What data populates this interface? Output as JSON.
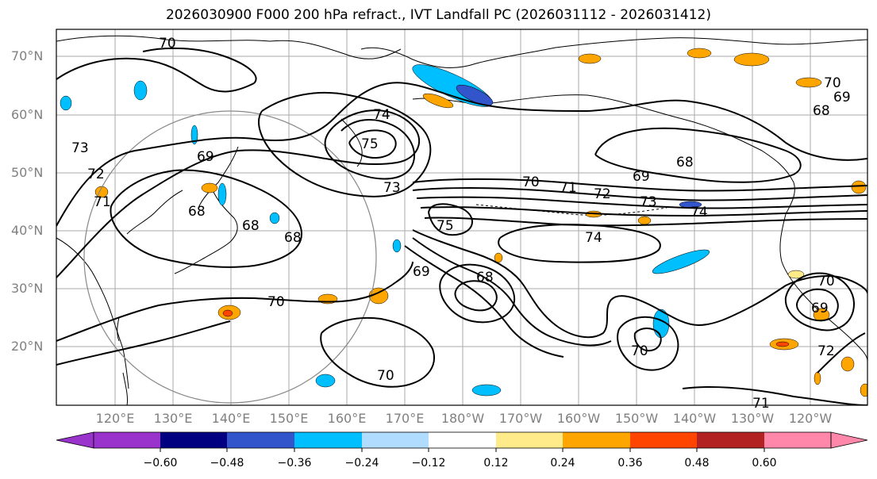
{
  "title": "2026030900 F000 200 hPa refract., IVT Landfall PC (2026031112 - 2026031412)",
  "lat_labels": [
    "70°N",
    "60°N",
    "50°N",
    "40°N",
    "30°N",
    "20°N"
  ],
  "lon_labels": [
    "120°E",
    "130°E",
    "140°E",
    "150°E",
    "160°E",
    "170°E",
    "180°W",
    "170°W",
    "160°W",
    "150°W",
    "140°W",
    "130°W",
    "120°W"
  ],
  "colorbar": {
    "ticks": [
      "−0.60",
      "−0.48",
      "−0.36",
      "−0.24",
      "−0.12",
      "0.12",
      "0.24",
      "0.36",
      "0.48",
      "0.60"
    ],
    "colors": [
      "#9933cc",
      "#000080",
      "#3355cc",
      "#00bfff",
      "#b0dcff",
      "#ffffff",
      "#ffeb8a",
      "#ffa500",
      "#ff4500",
      "#b22222",
      "#ff88aa"
    ]
  },
  "contour_labels": [
    {
      "text": "70"
    },
    {
      "text": "74"
    },
    {
      "text": "75"
    },
    {
      "text": "69"
    },
    {
      "text": "73"
    },
    {
      "text": "72"
    },
    {
      "text": "71"
    },
    {
      "text": "68"
    },
    {
      "text": "68"
    },
    {
      "text": "68"
    },
    {
      "text": "68"
    },
    {
      "text": "73"
    },
    {
      "text": "70"
    },
    {
      "text": "71"
    },
    {
      "text": "72"
    },
    {
      "text": "73"
    },
    {
      "text": "74"
    },
    {
      "text": "69"
    },
    {
      "text": "68"
    },
    {
      "text": "75"
    },
    {
      "text": "74"
    },
    {
      "text": "69"
    },
    {
      "text": "68"
    },
    {
      "text": "70"
    },
    {
      "text": "70"
    },
    {
      "text": "70"
    },
    {
      "text": "70"
    },
    {
      "text": "69"
    },
    {
      "text": "72"
    },
    {
      "text": "71"
    },
    {
      "text": "70"
    },
    {
      "text": "69"
    }
  ],
  "map": {
    "land_color": "#ffffff",
    "contour_color": "#000000",
    "grid_color": "#aaaaaa",
    "circle_color": "#888888"
  }
}
